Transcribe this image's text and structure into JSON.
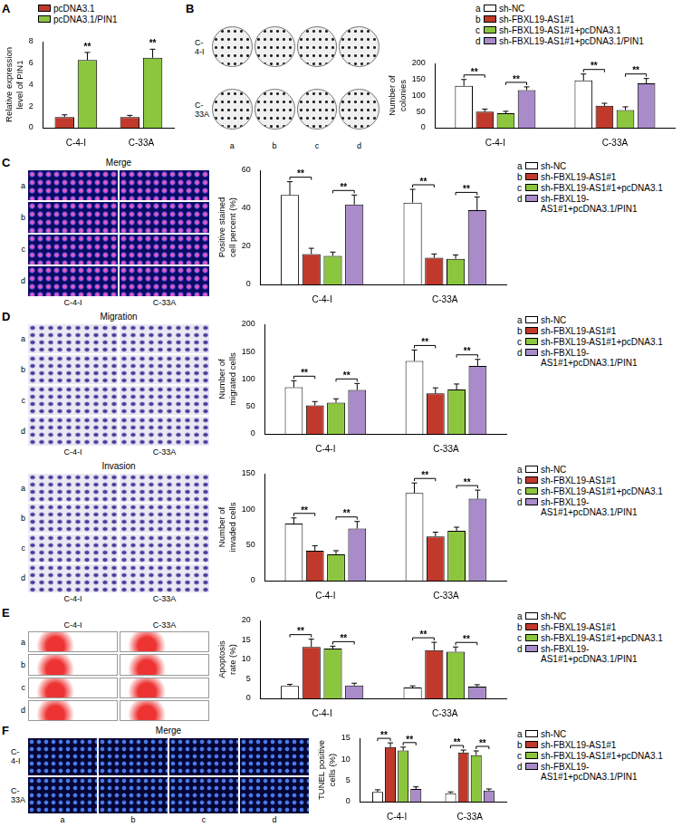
{
  "chart_data": [
    {
      "panel": "A",
      "type": "bar",
      "categories": [
        "C-4-I",
        "C-33A"
      ],
      "series": [
        {
          "name": "pcDNA3.1",
          "color": "#c0392b",
          "values": [
            1.0,
            1.0
          ],
          "errors": [
            0.2,
            0.15
          ]
        },
        {
          "name": "pcDNA3.1/PIN1",
          "color": "#8cc63e",
          "values": [
            6.3,
            6.5
          ],
          "errors": [
            0.7,
            0.8
          ]
        }
      ],
      "y_label": "Relative expression level of PIN1",
      "ylim": [
        0,
        8
      ],
      "yticks": [
        0,
        2,
        4,
        6,
        8
      ],
      "grid": false,
      "legend": "top",
      "annotations": [
        {
          "category": 0,
          "series": 1,
          "text": "**"
        },
        {
          "category": 1,
          "series": 1,
          "text": "**"
        }
      ]
    },
    {
      "type": "bar",
      "categories": [
        "C-4-I",
        "C-33A"
      ],
      "legend_letters": [
        "a",
        "b",
        "c",
        "d"
      ],
      "series": [
        {
          "name": "sh-NC",
          "color": "#ffffff",
          "values": [
            130,
            147
          ],
          "errors": [
            20,
            20
          ]
        },
        {
          "name": "sh-FBXL19-AS1#1",
          "color": "#c0392b",
          "values": [
            50,
            68
          ],
          "errors": [
            8,
            8
          ]
        },
        {
          "name": "sh-FBXL19-AS1#1+pcDNA3.1",
          "color": "#8cc63e",
          "values": [
            45,
            55
          ],
          "errors": [
            6,
            10
          ]
        },
        {
          "name": "sh-FBXL19-AS1#1+pcDNA3.1/PIN1",
          "color": "#a98bc9",
          "values": [
            117,
            138
          ],
          "errors": [
            10,
            15
          ]
        }
      ],
      "y_label": "Number of colonies",
      "ylim": [
        0,
        200
      ],
      "yticks": [
        0,
        50,
        100,
        150,
        200
      ],
      "grid": false,
      "legend": "top",
      "annotations": [
        {
          "category": 0,
          "from": 0,
          "to": 1,
          "text": "**"
        },
        {
          "category": 0,
          "from": 2,
          "to": 3,
          "text": "**"
        },
        {
          "category": 1,
          "from": 0,
          "to": 1,
          "text": "**"
        },
        {
          "category": 1,
          "from": 2,
          "to": 3,
          "text": "**"
        }
      ]
    },
    {
      "type": "bar",
      "categories": [
        "C-4-I",
        "C-33A"
      ],
      "legend_letters": [
        "a",
        "b",
        "c",
        "d"
      ],
      "series": [
        {
          "name": "sh-NC",
          "color": "#ffffff",
          "values": [
            47,
            43
          ],
          "errors": [
            7,
            7
          ]
        },
        {
          "name": "sh-FBXL19-AS1#1",
          "color": "#c0392b",
          "values": [
            16,
            14
          ],
          "errors": [
            3,
            2
          ]
        },
        {
          "name": "sh-FBXL19-AS1#1+pcDNA3.1",
          "color": "#8cc63e",
          "values": [
            15,
            13.5
          ],
          "errors": [
            2,
            2
          ]
        },
        {
          "name": "sh-FBXL19-AS1#1+pcDNA3.1/PIN1",
          "color": "#a98bc9",
          "values": [
            42,
            39
          ],
          "errors": [
            5,
            7
          ]
        }
      ],
      "y_label": "Positive stained cell percent (%)",
      "ylim": [
        0,
        60
      ],
      "yticks": [
        0,
        20,
        40,
        60
      ],
      "grid": false,
      "legend": "right",
      "annotations": [
        {
          "category": 0,
          "from": 0,
          "to": 1,
          "text": "**"
        },
        {
          "category": 0,
          "from": 2,
          "to": 3,
          "text": "**"
        },
        {
          "category": 1,
          "from": 0,
          "to": 1,
          "text": "**"
        },
        {
          "category": 1,
          "from": 2,
          "to": 3,
          "text": "**"
        }
      ]
    },
    {
      "type": "bar",
      "categories": [
        "C-4-I",
        "C-33A"
      ],
      "legend_letters": [
        "a",
        "b",
        "c",
        "d"
      ],
      "series": [
        {
          "name": "sh-NC",
          "color": "#ffffff",
          "values": [
            85,
            133
          ],
          "errors": [
            12,
            20
          ]
        },
        {
          "name": "sh-FBXL19-AS1#1",
          "color": "#c0392b",
          "values": [
            52,
            74
          ],
          "errors": [
            7,
            10
          ]
        },
        {
          "name": "sh-FBXL19-AS1#1+pcDNA3.1",
          "color": "#8cc63e",
          "values": [
            57,
            81
          ],
          "errors": [
            7,
            10
          ]
        },
        {
          "name": "sh-FBXL19-AS1#1+pcDNA3.1/PIN1",
          "color": "#a98bc9",
          "values": [
            80,
            124
          ],
          "errors": [
            12,
            12
          ]
        }
      ],
      "y_label": "Number of migrated cells",
      "ylim": [
        0,
        200
      ],
      "yticks": [
        0,
        50,
        100,
        150,
        200
      ],
      "grid": false,
      "legend": "right",
      "annotations": [
        {
          "category": 0,
          "from": 0,
          "to": 1,
          "text": "**"
        },
        {
          "category": 0,
          "from": 2,
          "to": 3,
          "text": "**"
        },
        {
          "category": 1,
          "from": 0,
          "to": 1,
          "text": "**"
        },
        {
          "category": 1,
          "from": 2,
          "to": 3,
          "text": "**"
        }
      ]
    },
    {
      "type": "bar",
      "categories": [
        "C-4-I",
        "C-33A"
      ],
      "legend_letters": [
        "a",
        "b",
        "c",
        "d"
      ],
      "series": [
        {
          "name": "sh-NC",
          "color": "#ffffff",
          "values": [
            80,
            123
          ],
          "errors": [
            8,
            14
          ]
        },
        {
          "name": "sh-FBXL19-AS1#1",
          "color": "#c0392b",
          "values": [
            42,
            62
          ],
          "errors": [
            7,
            6
          ]
        },
        {
          "name": "sh-FBXL19-AS1#1+pcDNA3.1",
          "color": "#8cc63e",
          "values": [
            37,
            70
          ],
          "errors": [
            5,
            5
          ]
        },
        {
          "name": "sh-FBXL19-AS1#1+pcDNA3.1/PIN1",
          "color": "#a98bc9",
          "values": [
            73,
            115
          ],
          "errors": [
            10,
            12
          ]
        }
      ],
      "y_label": "Number of invaded cells",
      "ylim": [
        0,
        150
      ],
      "yticks": [
        0,
        50,
        100,
        150
      ],
      "grid": false,
      "legend": "right",
      "annotations": [
        {
          "category": 0,
          "from": 0,
          "to": 1,
          "text": "**"
        },
        {
          "category": 0,
          "from": 2,
          "to": 3,
          "text": "**"
        },
        {
          "category": 1,
          "from": 0,
          "to": 1,
          "text": "**"
        },
        {
          "category": 1,
          "from": 2,
          "to": 3,
          "text": "**"
        }
      ]
    },
    {
      "type": "bar",
      "categories": [
        "C-4-I",
        "C-33A"
      ],
      "legend_letters": [
        "a",
        "b",
        "c",
        "d"
      ],
      "series": [
        {
          "name": "sh-NC",
          "color": "#ffffff",
          "values": [
            3.2,
            2.8
          ],
          "errors": [
            0.4,
            0.4
          ]
        },
        {
          "name": "sh-FBXL19-AS1#1",
          "color": "#c0392b",
          "values": [
            13.2,
            12.4
          ],
          "errors": [
            2,
            2
          ]
        },
        {
          "name": "sh-FBXL19-AS1#1+pcDNA3.1",
          "color": "#8cc63e",
          "values": [
            12.8,
            12
          ],
          "errors": [
            0.6,
            1.2
          ]
        },
        {
          "name": "sh-FBXL19-AS1#1+pcDNA3.1/PIN1",
          "color": "#a98bc9",
          "values": [
            3.3,
            3
          ],
          "errors": [
            0.6,
            0.5
          ]
        }
      ],
      "y_label": "Apoptosis rate (%)",
      "ylim": [
        0,
        20
      ],
      "yticks": [
        0,
        5,
        10,
        15,
        20
      ],
      "grid": false,
      "legend": "right",
      "annotations": [
        {
          "category": 0,
          "from": 0,
          "to": 1,
          "text": "**"
        },
        {
          "category": 0,
          "from": 2,
          "to": 3,
          "text": "**"
        },
        {
          "category": 1,
          "from": 0,
          "to": 1,
          "text": "**"
        },
        {
          "category": 1,
          "from": 2,
          "to": 3,
          "text": "**"
        }
      ]
    },
    {
      "type": "bar",
      "categories": [
        "C-4-I",
        "C-33A"
      ],
      "legend_letters": [
        "a",
        "b",
        "c",
        "d"
      ],
      "series": [
        {
          "name": "sh-NC",
          "color": "#ffffff",
          "values": [
            2.3,
            2
          ],
          "errors": [
            0.5,
            0.3
          ]
        },
        {
          "name": "sh-FBXL19-AS1#1",
          "color": "#c0392b",
          "values": [
            12.9,
            11.6
          ],
          "errors": [
            1,
            0.6
          ]
        },
        {
          "name": "sh-FBXL19-AS1#1+pcDNA3.1",
          "color": "#8cc63e",
          "values": [
            12.1,
            11
          ],
          "errors": [
            0.8,
            1
          ]
        },
        {
          "name": "sh-FBXL19-AS1#1+pcDNA3.1/PIN1",
          "color": "#a98bc9",
          "values": [
            3,
            2.6
          ],
          "errors": [
            0.5,
            0.4
          ]
        }
      ],
      "y_label": "TUNEL positive cells (%)",
      "ylim": [
        0,
        15
      ],
      "yticks": [
        0,
        5,
        10,
        15
      ],
      "grid": false,
      "legend": "right",
      "annotations": [
        {
          "category": 0,
          "from": 0,
          "to": 1,
          "text": "**"
        },
        {
          "category": 0,
          "from": 2,
          "to": 3,
          "text": "**"
        },
        {
          "category": 1,
          "from": 0,
          "to": 1,
          "text": "**"
        },
        {
          "category": 1,
          "from": 2,
          "to": 3,
          "text": "**"
        }
      ]
    }
  ],
  "image_panels": [
    {
      "panel": "B",
      "rows": [
        "C-4-I",
        "C-33A"
      ],
      "cols": [
        "a",
        "b",
        "c",
        "d"
      ]
    },
    {
      "panel": "C",
      "title": "Merge",
      "rows": [
        "a",
        "b",
        "c",
        "d"
      ],
      "cols": [
        "C-4-I",
        "C-33A"
      ]
    },
    {
      "panel": "D",
      "title": "Migration",
      "rows": [
        "a",
        "b",
        "c",
        "d"
      ],
      "cols": [
        "C-4-I",
        "C-33A"
      ]
    },
    {
      "title": "Invasion",
      "rows": [
        "a",
        "b",
        "c",
        "d"
      ],
      "cols": [
        "C-4-I",
        "C-33A"
      ]
    },
    {
      "panel": "E",
      "rows": [
        "a",
        "b",
        "c",
        "d"
      ],
      "cols": [
        "C-4-I",
        "C-33A"
      ]
    },
    {
      "panel": "F",
      "title": "Merge",
      "rows": [
        "C-4-I",
        "C-33A"
      ],
      "cols": [
        "a",
        "b",
        "c",
        "d"
      ]
    }
  ]
}
